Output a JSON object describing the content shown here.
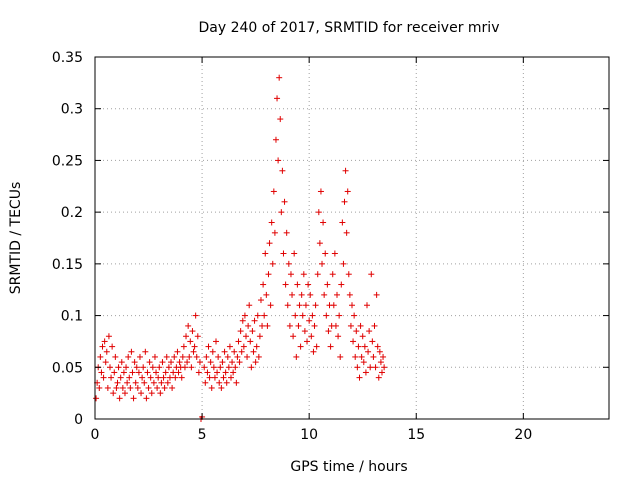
{
  "chart_data": {
    "type": "scatter",
    "title": "Day 240 of 2017, SRMTID for receiver mriv",
    "xlabel": "GPS time / hours",
    "ylabel": "SRMTID / TECUs",
    "xlim": [
      0,
      24
    ],
    "ylim": [
      0,
      0.35
    ],
    "xticks": [
      0,
      5,
      10,
      15,
      20
    ],
    "xtick_labels": [
      "0",
      "5",
      "10",
      "15",
      "20"
    ],
    "yticks": [
      0,
      0.05,
      0.1,
      0.15,
      0.2,
      0.25,
      0.3,
      0.35
    ],
    "ytick_labels": [
      "0",
      "0.05",
      "0.1",
      "0.15",
      "0.2",
      "0.25",
      "0.3",
      "0.35"
    ],
    "grid": true,
    "marker": "plus",
    "color": "#e00000",
    "series": [
      {
        "points": [
          [
            0.05,
            0.02
          ],
          [
            0.1,
            0.035
          ],
          [
            0.15,
            0.05
          ],
          [
            0.2,
            0.03
          ],
          [
            0.25,
            0.06
          ],
          [
            0.3,
            0.045
          ],
          [
            0.35,
            0.07
          ],
          [
            0.4,
            0.04
          ],
          [
            0.45,
            0.075
          ],
          [
            0.5,
            0.055
          ],
          [
            0.55,
            0.065
          ],
          [
            0.6,
            0.03
          ],
          [
            0.65,
            0.08
          ],
          [
            0.7,
            0.05
          ],
          [
            0.75,
            0.04
          ],
          [
            0.8,
            0.07
          ],
          [
            0.85,
            0.025
          ],
          [
            0.9,
            0.045
          ],
          [
            0.95,
            0.06
          ],
          [
            1.0,
            0.03
          ],
          [
            1.05,
            0.035
          ],
          [
            1.1,
            0.05
          ],
          [
            1.15,
            0.02
          ],
          [
            1.2,
            0.04
          ],
          [
            1.25,
            0.055
          ],
          [
            1.3,
            0.03
          ],
          [
            1.35,
            0.045
          ],
          [
            1.4,
            0.025
          ],
          [
            1.45,
            0.05
          ],
          [
            1.5,
            0.035
          ],
          [
            1.55,
            0.06
          ],
          [
            1.6,
            0.04
          ],
          [
            1.65,
            0.03
          ],
          [
            1.7,
            0.065
          ],
          [
            1.75,
            0.045
          ],
          [
            1.8,
            0.02
          ],
          [
            1.85,
            0.055
          ],
          [
            1.9,
            0.035
          ],
          [
            1.95,
            0.05
          ],
          [
            2.0,
            0.03
          ],
          [
            2.05,
            0.045
          ],
          [
            2.1,
            0.06
          ],
          [
            2.15,
            0.025
          ],
          [
            2.2,
            0.04
          ],
          [
            2.25,
            0.05
          ],
          [
            2.3,
            0.035
          ],
          [
            2.35,
            0.065
          ],
          [
            2.4,
            0.02
          ],
          [
            2.45,
            0.045
          ],
          [
            2.5,
            0.03
          ],
          [
            2.55,
            0.055
          ],
          [
            2.6,
            0.04
          ],
          [
            2.65,
            0.025
          ],
          [
            2.7,
            0.05
          ],
          [
            2.75,
            0.035
          ],
          [
            2.8,
            0.06
          ],
          [
            2.85,
            0.045
          ],
          [
            2.9,
            0.03
          ],
          [
            2.95,
            0.04
          ],
          [
            3.0,
            0.05
          ],
          [
            3.05,
            0.025
          ],
          [
            3.1,
            0.035
          ],
          [
            3.15,
            0.055
          ],
          [
            3.2,
            0.04
          ],
          [
            3.25,
            0.03
          ],
          [
            3.3,
            0.045
          ],
          [
            3.35,
            0.06
          ],
          [
            3.4,
            0.035
          ],
          [
            3.45,
            0.05
          ],
          [
            3.5,
            0.04
          ],
          [
            3.55,
            0.055
          ],
          [
            3.6,
            0.03
          ],
          [
            3.65,
            0.045
          ],
          [
            3.7,
            0.06
          ],
          [
            3.75,
            0.04
          ],
          [
            3.8,
            0.05
          ],
          [
            3.85,
            0.065
          ],
          [
            3.9,
            0.045
          ],
          [
            3.95,
            0.055
          ],
          [
            4.0,
            0.05
          ],
          [
            4.05,
            0.04
          ],
          [
            4.1,
            0.06
          ],
          [
            4.15,
            0.07
          ],
          [
            4.2,
            0.05
          ],
          [
            4.25,
            0.08
          ],
          [
            4.3,
            0.055
          ],
          [
            4.35,
            0.09
          ],
          [
            4.4,
            0.06
          ],
          [
            4.45,
            0.075
          ],
          [
            4.5,
            0.05
          ],
          [
            4.55,
            0.085
          ],
          [
            4.6,
            0.065
          ],
          [
            4.65,
            0.07
          ],
          [
            4.7,
            0.1
          ],
          [
            4.75,
            0.06
          ],
          [
            4.8,
            0.08
          ],
          [
            4.85,
            0.045
          ],
          [
            4.9,
            0.055
          ],
          [
            4.95,
            0.0
          ],
          [
            5.0,
            0.002
          ],
          [
            5.1,
            0.05
          ],
          [
            5.15,
            0.035
          ],
          [
            5.2,
            0.06
          ],
          [
            5.25,
            0.045
          ],
          [
            5.3,
            0.07
          ],
          [
            5.35,
            0.04
          ],
          [
            5.4,
            0.055
          ],
          [
            5.45,
            0.03
          ],
          [
            5.5,
            0.065
          ],
          [
            5.55,
            0.05
          ],
          [
            5.6,
            0.04
          ],
          [
            5.65,
            0.075
          ],
          [
            5.7,
            0.045
          ],
          [
            5.75,
            0.06
          ],
          [
            5.8,
            0.035
          ],
          [
            5.85,
            0.05
          ],
          [
            5.9,
            0.03
          ],
          [
            5.95,
            0.055
          ],
          [
            6.0,
            0.04
          ],
          [
            6.05,
            0.065
          ],
          [
            6.1,
            0.045
          ],
          [
            6.15,
            0.035
          ],
          [
            6.2,
            0.06
          ],
          [
            6.25,
            0.05
          ],
          [
            6.3,
            0.07
          ],
          [
            6.35,
            0.04
          ],
          [
            6.4,
            0.055
          ],
          [
            6.45,
            0.045
          ],
          [
            6.5,
            0.065
          ],
          [
            6.55,
            0.05
          ],
          [
            6.6,
            0.035
          ],
          [
            6.65,
            0.06
          ],
          [
            6.7,
            0.075
          ],
          [
            6.75,
            0.055
          ],
          [
            6.8,
            0.085
          ],
          [
            6.85,
            0.065
          ],
          [
            6.9,
            0.095
          ],
          [
            6.95,
            0.07
          ],
          [
            7.0,
            0.1
          ],
          [
            7.05,
            0.08
          ],
          [
            7.1,
            0.06
          ],
          [
            7.15,
            0.09
          ],
          [
            7.2,
            0.11
          ],
          [
            7.25,
            0.075
          ],
          [
            7.3,
            0.05
          ],
          [
            7.35,
            0.085
          ],
          [
            7.4,
            0.065
          ],
          [
            7.45,
            0.095
          ],
          [
            7.5,
            0.055
          ],
          [
            7.55,
            0.07
          ],
          [
            7.6,
            0.1
          ],
          [
            7.65,
            0.06
          ],
          [
            7.7,
            0.08
          ],
          [
            7.75,
            0.115
          ],
          [
            7.8,
            0.09
          ],
          [
            7.85,
            0.13
          ],
          [
            7.9,
            0.1
          ],
          [
            7.95,
            0.16
          ],
          [
            8.0,
            0.12
          ],
          [
            8.05,
            0.09
          ],
          [
            8.1,
            0.14
          ],
          [
            8.15,
            0.17
          ],
          [
            8.2,
            0.11
          ],
          [
            8.25,
            0.19
          ],
          [
            8.3,
            0.15
          ],
          [
            8.35,
            0.22
          ],
          [
            8.4,
            0.18
          ],
          [
            8.45,
            0.27
          ],
          [
            8.5,
            0.31
          ],
          [
            8.55,
            0.25
          ],
          [
            8.6,
            0.33
          ],
          [
            8.65,
            0.29
          ],
          [
            8.7,
            0.2
          ],
          [
            8.75,
            0.24
          ],
          [
            8.8,
            0.16
          ],
          [
            8.85,
            0.21
          ],
          [
            8.9,
            0.13
          ],
          [
            8.95,
            0.18
          ],
          [
            9.0,
            0.11
          ],
          [
            9.05,
            0.15
          ],
          [
            9.1,
            0.09
          ],
          [
            9.15,
            0.14
          ],
          [
            9.2,
            0.12
          ],
          [
            9.25,
            0.08
          ],
          [
            9.3,
            0.16
          ],
          [
            9.35,
            0.1
          ],
          [
            9.4,
            0.06
          ],
          [
            9.45,
            0.13
          ],
          [
            9.5,
            0.09
          ],
          [
            9.55,
            0.11
          ],
          [
            9.6,
            0.07
          ],
          [
            9.65,
            0.12
          ],
          [
            9.7,
            0.1
          ],
          [
            9.75,
            0.14
          ],
          [
            9.8,
            0.085
          ],
          [
            9.85,
            0.11
          ],
          [
            9.9,
            0.075
          ],
          [
            9.95,
            0.13
          ],
          [
            10.0,
            0.095
          ],
          [
            10.05,
            0.12
          ],
          [
            10.1,
            0.08
          ],
          [
            10.15,
            0.1
          ],
          [
            10.2,
            0.065
          ],
          [
            10.25,
            0.09
          ],
          [
            10.3,
            0.11
          ],
          [
            10.35,
            0.07
          ],
          [
            10.4,
            0.14
          ],
          [
            10.45,
            0.2
          ],
          [
            10.5,
            0.17
          ],
          [
            10.55,
            0.22
          ],
          [
            10.6,
            0.15
          ],
          [
            10.65,
            0.19
          ],
          [
            10.7,
            0.12
          ],
          [
            10.75,
            0.16
          ],
          [
            10.8,
            0.1
          ],
          [
            10.85,
            0.13
          ],
          [
            10.9,
            0.085
          ],
          [
            10.95,
            0.11
          ],
          [
            11.0,
            0.07
          ],
          [
            11.05,
            0.09
          ],
          [
            11.1,
            0.14
          ],
          [
            11.15,
            0.11
          ],
          [
            11.2,
            0.16
          ],
          [
            11.25,
            0.09
          ],
          [
            11.3,
            0.12
          ],
          [
            11.35,
            0.08
          ],
          [
            11.4,
            0.1
          ],
          [
            11.45,
            0.06
          ],
          [
            11.5,
            0.13
          ],
          [
            11.55,
            0.19
          ],
          [
            11.6,
            0.15
          ],
          [
            11.65,
            0.21
          ],
          [
            11.7,
            0.24
          ],
          [
            11.75,
            0.18
          ],
          [
            11.8,
            0.22
          ],
          [
            11.85,
            0.14
          ],
          [
            11.9,
            0.12
          ],
          [
            11.95,
            0.09
          ],
          [
            12.0,
            0.11
          ],
          [
            12.05,
            0.075
          ],
          [
            12.1,
            0.1
          ],
          [
            12.15,
            0.06
          ],
          [
            12.2,
            0.085
          ],
          [
            12.25,
            0.05
          ],
          [
            12.3,
            0.07
          ],
          [
            12.35,
            0.04
          ],
          [
            12.4,
            0.09
          ],
          [
            12.45,
            0.06
          ],
          [
            12.5,
            0.08
          ],
          [
            12.55,
            0.055
          ],
          [
            12.6,
            0.07
          ],
          [
            12.65,
            0.045
          ],
          [
            12.7,
            0.11
          ],
          [
            12.75,
            0.065
          ],
          [
            12.8,
            0.085
          ],
          [
            12.85,
            0.05
          ],
          [
            12.9,
            0.14
          ],
          [
            12.95,
            0.075
          ],
          [
            13.0,
            0.06
          ],
          [
            13.05,
            0.09
          ],
          [
            13.1,
            0.05
          ],
          [
            13.15,
            0.12
          ],
          [
            13.2,
            0.07
          ],
          [
            13.25,
            0.04
          ],
          [
            13.3,
            0.065
          ],
          [
            13.35,
            0.055
          ],
          [
            13.4,
            0.045
          ],
          [
            13.45,
            0.06
          ],
          [
            13.5,
            0.05
          ]
        ]
      }
    ]
  }
}
